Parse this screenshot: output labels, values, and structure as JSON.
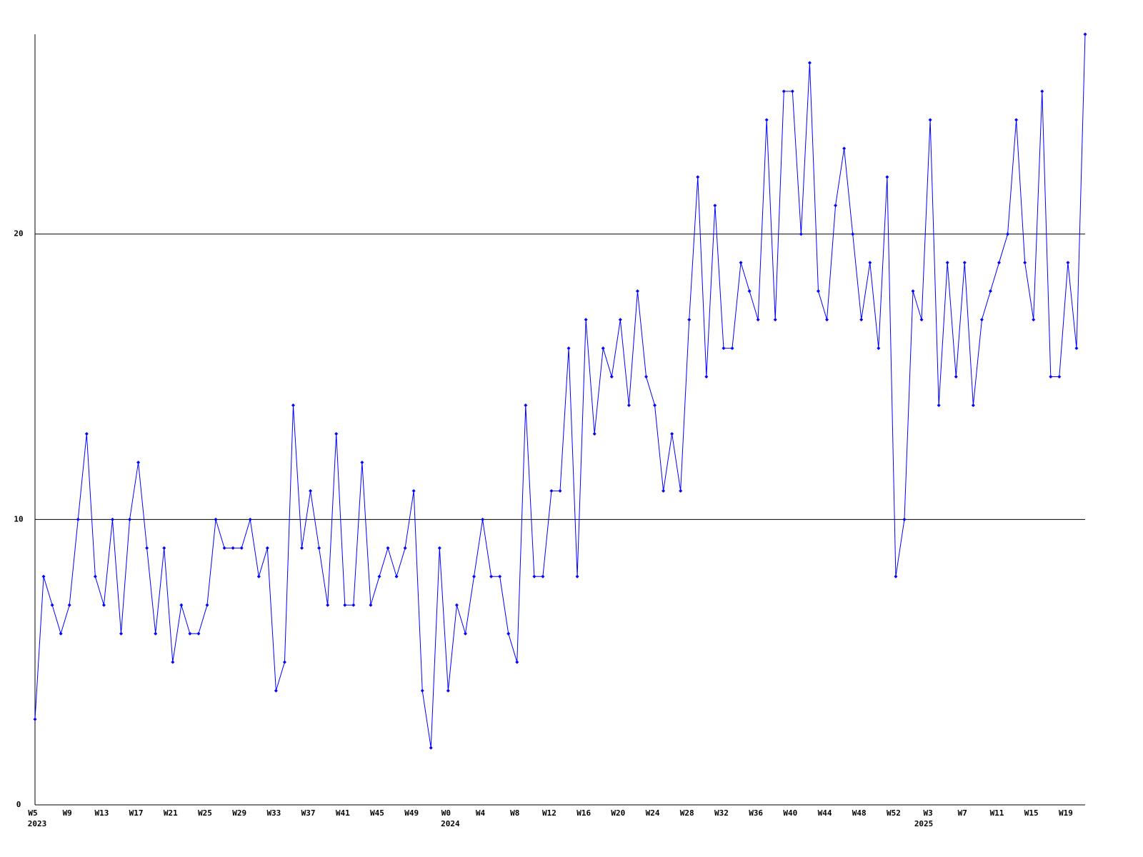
{
  "chart_data": {
    "type": "line",
    "color": "#0000ff",
    "grid": true,
    "ylim": [
      0,
      27
    ],
    "yticks": [
      0,
      10,
      20
    ],
    "categories": [
      "W5",
      null,
      null,
      null,
      "W9",
      null,
      null,
      null,
      "W13",
      null,
      null,
      null,
      "W17",
      null,
      null,
      null,
      "W21",
      null,
      null,
      null,
      "W25",
      null,
      null,
      null,
      "W29",
      null,
      null,
      null,
      "W33",
      null,
      null,
      null,
      "W37",
      null,
      null,
      null,
      "W41",
      null,
      null,
      null,
      "W45",
      null,
      null,
      null,
      "W49",
      null,
      null,
      null,
      "W0",
      null,
      null,
      null,
      "W4",
      null,
      null,
      null,
      "W8",
      null,
      null,
      null,
      "W12",
      null,
      null,
      null,
      "W16",
      null,
      null,
      null,
      "W20",
      null,
      null,
      null,
      "W24",
      null,
      null,
      null,
      "W28",
      null,
      null,
      null,
      "W32",
      null,
      null,
      null,
      "W36",
      null,
      null,
      null,
      "W40",
      null,
      null,
      null,
      "W44",
      null,
      null,
      null,
      "W48",
      null,
      null,
      null,
      "W52",
      null,
      null,
      null,
      "W3",
      null,
      null,
      null,
      "W7",
      null,
      null,
      null,
      "W11",
      null,
      null,
      null,
      "W15",
      null,
      null,
      null,
      "W19",
      null,
      null
    ],
    "years": [
      "2023",
      null,
      null,
      null,
      null,
      null,
      null,
      null,
      null,
      null,
      null,
      null,
      null,
      null,
      null,
      null,
      null,
      null,
      null,
      null,
      null,
      null,
      null,
      null,
      null,
      null,
      null,
      null,
      null,
      null,
      null,
      null,
      null,
      null,
      null,
      null,
      null,
      null,
      null,
      null,
      null,
      null,
      null,
      null,
      null,
      null,
      null,
      null,
      "2024",
      null,
      null,
      null,
      null,
      null,
      null,
      null,
      null,
      null,
      null,
      null,
      null,
      null,
      null,
      null,
      null,
      null,
      null,
      null,
      null,
      null,
      null,
      null,
      null,
      null,
      null,
      null,
      null,
      null,
      null,
      null,
      null,
      null,
      null,
      null,
      null,
      null,
      null,
      null,
      null,
      null,
      null,
      null,
      null,
      null,
      null,
      null,
      null,
      null,
      null,
      null,
      null,
      null,
      null,
      "2025",
      null,
      null,
      null,
      null,
      null,
      null,
      null,
      null,
      null,
      null,
      null,
      null,
      null,
      null,
      null,
      null,
      null,
      null,
      null,
      null
    ],
    "values": [
      3,
      8,
      7,
      6,
      7,
      10,
      13,
      8,
      7,
      10,
      6,
      10,
      12,
      9,
      6,
      9,
      5,
      7,
      6,
      6,
      7,
      10,
      9,
      9,
      9,
      10,
      8,
      9,
      4,
      5,
      14,
      9,
      11,
      9,
      7,
      13,
      7,
      7,
      12,
      7,
      8,
      9,
      8,
      9,
      11,
      4,
      2,
      9,
      4,
      7,
      6,
      8,
      10,
      8,
      8,
      6,
      5,
      14,
      8,
      8,
      11,
      11,
      16,
      8,
      17,
      13,
      16,
      15,
      17,
      14,
      18,
      15,
      14,
      11,
      13,
      11,
      17,
      22,
      15,
      21,
      16,
      16,
      19,
      18,
      17,
      24,
      17,
      25,
      25,
      20,
      26,
      18,
      17,
      21,
      23,
      20,
      17,
      19,
      16,
      22,
      8,
      10,
      18,
      17,
      24,
      14,
      19,
      15,
      19,
      14,
      17,
      18,
      19,
      20,
      24,
      19,
      17,
      25,
      15,
      15,
      19,
      16,
      27
    ]
  }
}
